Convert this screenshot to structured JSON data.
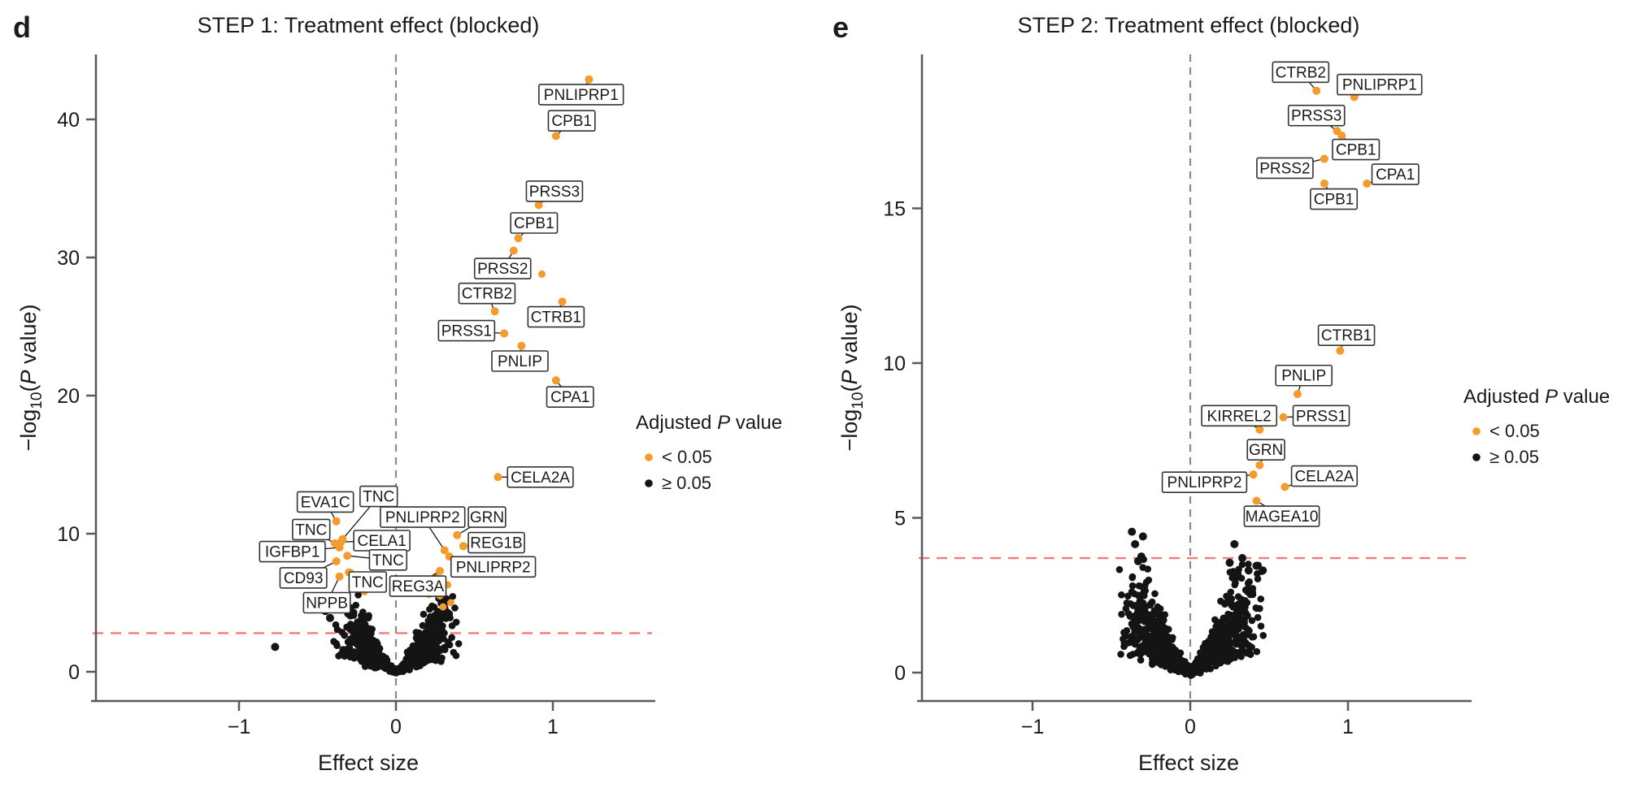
{
  "figure": {
    "colors": {
      "significant": "#F59B2C",
      "not_significant": "#141414",
      "threshold_line": "#F47A7A",
      "zero_line": "#8A8A8A",
      "axis": "#595959",
      "text": "#1A1A1A",
      "label_box_border": "#333333",
      "label_box_fill": "#FFFFFF"
    },
    "legend": {
      "title_parts": [
        "Adjusted ",
        "P",
        " value"
      ],
      "items": [
        {
          "label": "< 0.05",
          "color_key": "significant"
        },
        {
          "label": "≥ 0.05",
          "color_key": "not_significant"
        }
      ]
    }
  },
  "chart_data": [
    {
      "type": "scatter",
      "id": "d",
      "panel_letter": "d",
      "title": "STEP 1: Treatment effect (blocked)",
      "xlabel": "Effect size",
      "ylabel_plain": "-log10(P value)",
      "ylabel_parts": {
        "prefix": "−log",
        "sub": "10",
        "open": "(",
        "italic": "P",
        "rest": " value)"
      },
      "x_ticks": [
        "−1",
        "0",
        "1"
      ],
      "x_tick_values": [
        -1,
        0,
        1
      ],
      "y_ticks": [
        0,
        10,
        20,
        30,
        40
      ],
      "xlim": [
        -1.9,
        1.55
      ],
      "ylim": [
        0,
        44.5
      ],
      "grid": false,
      "zero_line_x": 0,
      "threshold_line_y": 2.8,
      "labeled_points": [
        {
          "g": "PNLIPRP1",
          "x": 1.23,
          "y": 42.9,
          "lx": 1.18,
          "ly": 41.8
        },
        {
          "g": "CPB1",
          "x": 1.02,
          "y": 38.8,
          "lx": 1.12,
          "ly": 39.9
        },
        {
          "g": "PRSS3",
          "x": 0.91,
          "y": 33.8,
          "lx": 1.01,
          "ly": 34.8
        },
        {
          "g": "CPB1",
          "x": 0.78,
          "y": 31.4,
          "lx": 0.88,
          "ly": 32.5
        },
        {
          "g": "PRSS2",
          "x": 0.75,
          "y": 30.5,
          "lx": 0.68,
          "ly": 29.2
        },
        {
          "g": "CTRB2",
          "x": 0.63,
          "y": 26.1,
          "lx": 0.58,
          "ly": 27.4
        },
        {
          "g": "CTRB1",
          "x": 1.06,
          "y": 26.8,
          "lx": 1.02,
          "ly": 25.7
        },
        {
          "g": "PRSS1",
          "x": 0.69,
          "y": 24.5,
          "lx": 0.45,
          "ly": 24.7
        },
        {
          "g": "PNLIP",
          "x": 0.8,
          "y": 23.6,
          "lx": 0.79,
          "ly": 22.5
        },
        {
          "g": "CPA1",
          "x": 1.02,
          "y": 21.1,
          "lx": 1.11,
          "ly": 19.9
        },
        {
          "g": "CELA2A",
          "x": 0.65,
          "y": 14.1,
          "lx": 0.92,
          "ly": 14.1
        },
        {
          "g": "EVA1C",
          "x": -0.38,
          "y": 10.9,
          "lx": -0.45,
          "ly": 12.3
        },
        {
          "g": "TNC",
          "x": -0.34,
          "y": 9.6,
          "lx": -0.11,
          "ly": 12.7
        },
        {
          "g": "PNLIPRP2",
          "x": 0.31,
          "y": 8.8,
          "lx": 0.17,
          "ly": 11.2
        },
        {
          "g": "GRN",
          "x": 0.39,
          "y": 9.9,
          "lx": 0.58,
          "ly": 11.2
        },
        {
          "g": "TNC",
          "x": -0.39,
          "y": 9.3,
          "lx": -0.54,
          "ly": 10.3
        },
        {
          "g": "CELA1",
          "x": -0.35,
          "y": 9.4,
          "lx": -0.09,
          "ly": 9.5
        },
        {
          "g": "IGFBP1",
          "x": -0.36,
          "y": 9.0,
          "lx": -0.66,
          "ly": 8.7
        },
        {
          "g": "REG1B",
          "x": 0.43,
          "y": 9.1,
          "lx": 0.64,
          "ly": 9.35
        },
        {
          "g": "TNC",
          "x": -0.31,
          "y": 8.4,
          "lx": -0.05,
          "ly": 8.1
        },
        {
          "g": "PNLIPRP2",
          "x": 0.34,
          "y": 8.35,
          "lx": 0.62,
          "ly": 7.6
        },
        {
          "g": "CD93",
          "x": -0.38,
          "y": 8.0,
          "lx": -0.59,
          "ly": 6.8
        },
        {
          "g": "TNC",
          "x": -0.3,
          "y": 7.2,
          "lx": -0.18,
          "ly": 6.5
        },
        {
          "g": "REG3A",
          "x": 0.28,
          "y": 7.3,
          "lx": 0.14,
          "ly": 6.2
        },
        {
          "g": "NPPB",
          "x": -0.36,
          "y": 6.9,
          "lx": -0.44,
          "ly": 5.0
        }
      ],
      "extra_orange": [
        [
          0.93,
          28.8
        ],
        [
          -0.42,
          5.5
        ],
        [
          -0.29,
          7.2
        ],
        [
          -0.25,
          6.1
        ],
        [
          -0.33,
          5.0
        ],
        [
          0.25,
          6.9
        ],
        [
          0.33,
          6.3
        ],
        [
          0.28,
          5.5
        ],
        [
          0.35,
          5.0
        ],
        [
          0.21,
          5.6
        ],
        [
          0.3,
          4.7
        ],
        [
          -0.2,
          5.8
        ]
      ],
      "extra_black": [
        [
          -0.77,
          1.8
        ],
        [
          -0.45,
          4.4
        ],
        [
          -0.42,
          3.9
        ],
        [
          0.28,
          4.3
        ],
        [
          0.25,
          3.8
        ],
        [
          -0.38,
          4.8
        ]
      ],
      "cloud": {
        "n": 640,
        "seed": 7,
        "x_spread": 0.42,
        "y_max": 6.2,
        "y_exp": 1.3
      }
    },
    {
      "type": "scatter",
      "id": "e",
      "panel_letter": "e",
      "title": "STEP 2: Treatment effect (blocked)",
      "xlabel": "Effect size",
      "ylabel_plain": "-log10(P value)",
      "ylabel_parts": {
        "prefix": "−log",
        "sub": "10",
        "open": "(",
        "italic": "P",
        "rest": " value)"
      },
      "x_ticks": [
        "−1",
        "0",
        "1"
      ],
      "x_tick_values": [
        -1,
        0,
        1
      ],
      "y_ticks": [
        0,
        5,
        10,
        15
      ],
      "xlim": [
        -1.7,
        1.69
      ],
      "ylim": [
        0,
        20.0
      ],
      "grid": false,
      "zero_line_x": 0,
      "threshold_line_y": 3.7,
      "labeled_points": [
        {
          "g": "CTRB2",
          "x": 0.8,
          "y": 18.8,
          "lx": 0.7,
          "ly": 19.4
        },
        {
          "g": "PNLIPRP1",
          "x": 1.04,
          "y": 18.6,
          "lx": 1.2,
          "ly": 19.0
        },
        {
          "g": "PRSS3",
          "x": 0.93,
          "y": 17.5,
          "lx": 0.8,
          "ly": 18.0
        },
        {
          "g": "CPB1",
          "x": 0.96,
          "y": 17.35,
          "lx": 1.05,
          "ly": 16.9
        },
        {
          "g": "PRSS2",
          "x": 0.85,
          "y": 16.6,
          "lx": 0.6,
          "ly": 16.3
        },
        {
          "g": "CPA1",
          "x": 1.12,
          "y": 15.8,
          "lx": 1.3,
          "ly": 16.1
        },
        {
          "g": "CPB1",
          "x": 0.85,
          "y": 15.8,
          "lx": 0.91,
          "ly": 15.3
        },
        {
          "g": "CTRB1",
          "x": 0.95,
          "y": 10.4,
          "lx": 0.99,
          "ly": 10.9
        },
        {
          "g": "PNLIP",
          "x": 0.68,
          "y": 9.0,
          "lx": 0.72,
          "ly": 9.6
        },
        {
          "g": "KIRREL2",
          "x": 0.44,
          "y": 7.85,
          "lx": 0.31,
          "ly": 8.3
        },
        {
          "g": "PRSS1",
          "x": 0.59,
          "y": 8.25,
          "lx": 0.83,
          "ly": 8.3
        },
        {
          "g": "GRN",
          "x": 0.44,
          "y": 6.7,
          "lx": 0.48,
          "ly": 7.2
        },
        {
          "g": "PNLIPRP2",
          "x": 0.4,
          "y": 6.4,
          "lx": 0.09,
          "ly": 6.15
        },
        {
          "g": "CELA2A",
          "x": 0.6,
          "y": 6.0,
          "lx": 0.85,
          "ly": 6.35
        },
        {
          "g": "MAGEA10",
          "x": 0.42,
          "y": 5.55,
          "lx": 0.58,
          "ly": 5.05
        }
      ],
      "extra_orange": [],
      "extra_black": [
        [
          -0.37,
          4.55
        ],
        [
          -0.3,
          4.4
        ],
        [
          -0.35,
          4.15
        ],
        [
          -0.31,
          3.75
        ],
        [
          -0.33,
          3.6
        ],
        [
          0.28,
          4.15
        ],
        [
          0.33,
          3.7
        ],
        [
          0.42,
          3.45
        ],
        [
          0.46,
          3.3
        ],
        [
          0.4,
          4.95
        ],
        [
          0.25,
          3.55
        ],
        [
          0.37,
          3.3
        ],
        [
          0.3,
          3.2
        ]
      ],
      "cloud": {
        "n": 880,
        "seed": 13,
        "x_spread": 0.48,
        "y_max": 3.6,
        "y_exp": 1.3
      }
    }
  ]
}
